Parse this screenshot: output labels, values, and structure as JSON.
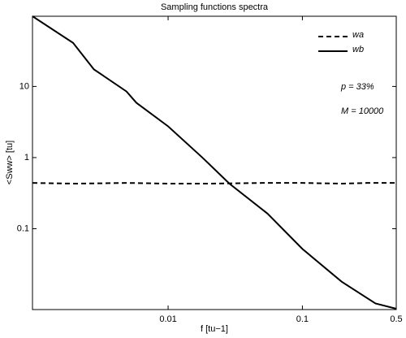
{
  "chart_data": {
    "type": "line",
    "title": "Sampling functions spectra",
    "x_label": "f [tu−1]",
    "y_label": "<Sww> [tu]",
    "log_x": true,
    "log_y": true,
    "xlim": [
      0.000977,
      0.5
    ],
    "ylim": [
      0.0073,
      97
    ],
    "xticks": [
      0.01,
      0.1,
      0.5
    ],
    "yticks": [
      0.1,
      1,
      10
    ],
    "legend": "upper right",
    "annotations": [
      "p = 33%",
      "M = 10000"
    ],
    "series": [
      {
        "name": "wa",
        "color": "#000000",
        "dash": true,
        "x": [
          0.000977,
          0.002,
          0.005,
          0.01,
          0.02,
          0.05,
          0.1,
          0.2,
          0.3,
          0.5
        ],
        "values": [
          0.44,
          0.43,
          0.44,
          0.43,
          0.43,
          0.44,
          0.44,
          0.43,
          0.44,
          0.44
        ]
      },
      {
        "name": "wb",
        "color": "#000000",
        "dash": false,
        "x": [
          0.000977,
          0.00196,
          0.0028,
          0.0049,
          0.0058,
          0.01,
          0.018,
          0.0286,
          0.055,
          0.1,
          0.196,
          0.35,
          0.5
        ],
        "values": [
          97,
          41,
          17.4,
          8.5,
          5.9,
          2.75,
          1.0,
          0.43,
          0.163,
          0.052,
          0.018,
          0.0089,
          0.0075
        ]
      }
    ]
  }
}
